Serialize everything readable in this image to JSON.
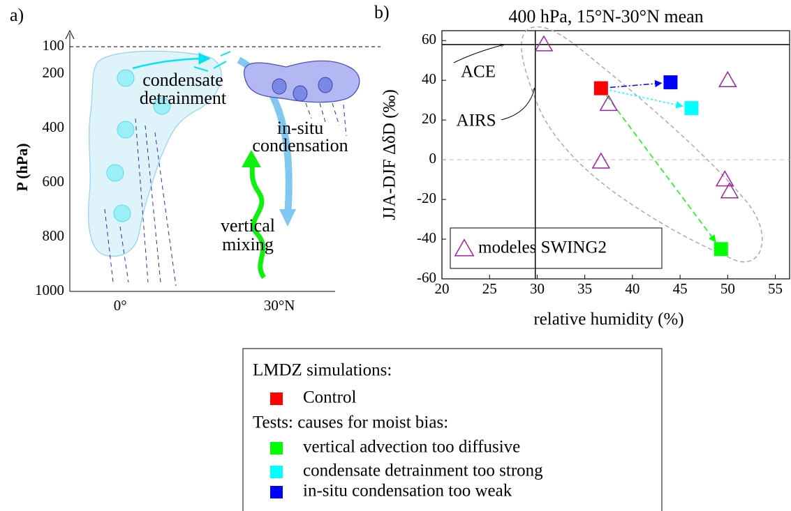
{
  "chart_data": [
    {
      "type": "schematic",
      "panel_label": "a)",
      "ylabel": "P (hPa)",
      "ylim": [
        100,
        1000
      ],
      "y_inverted": true,
      "yticks": [
        100,
        200,
        400,
        600,
        800,
        1000
      ],
      "xlim": [
        -9.5,
        40.5
      ],
      "xticks": [
        {
          "value": 0,
          "label": "0°"
        },
        {
          "value": 30,
          "label": "30°N"
        }
      ],
      "annotations": [
        "condensate",
        "detrainment",
        "in-situ",
        "condensation",
        "vertical",
        "mixing"
      ]
    },
    {
      "type": "scatter",
      "panel_label": "b)",
      "title": "400 hPa, 15°N-30°N mean",
      "xlabel": "relative humidity (%)",
      "ylabel": "JJA-DJF ΔδD (‰)",
      "xlim": [
        20,
        56.5
      ],
      "xticks": [
        20,
        25,
        30,
        35,
        40,
        45,
        50,
        55
      ],
      "ylim": [
        -60,
        65
      ],
      "yticks": [
        -60,
        -40,
        -20,
        0,
        20,
        40,
        60
      ],
      "zero_line": true,
      "reference_lines": [
        {
          "label": "ACE",
          "axis": "y",
          "value": 58
        },
        {
          "label": "AIRS",
          "axis": "x",
          "value": 29.8
        }
      ],
      "legend_titles": [
        "LMDZ simulations:",
        "Tests: causes for moist bias:"
      ],
      "series": [
        {
          "name": "modeles SWING2",
          "color": "#a020a0",
          "marker": "triangle",
          "x": [
            30.7,
            37.5,
            36.7,
            50,
            49.7,
            50.2
          ],
          "values": [
            58,
            28,
            -1,
            40,
            -10,
            -16
          ]
        },
        {
          "name": "Control",
          "color": "#ff0000",
          "marker": "square",
          "x": [
            36.7
          ],
          "values": [
            36
          ]
        },
        {
          "name": "vertical advection too diffusive",
          "color": "#00ff00",
          "marker": "square",
          "line_style": "dashed",
          "x": [
            49.3
          ],
          "values": [
            -45
          ]
        },
        {
          "name": "condensate detrainment too strong",
          "color": "#00ffff",
          "marker": "square",
          "line_style": "dotted",
          "x": [
            46.2
          ],
          "values": [
            26
          ]
        },
        {
          "name": "in-situ condensation too weak",
          "color": "#0000ff",
          "marker": "square",
          "line_style": "dashdot",
          "x": [
            44
          ],
          "values": [
            39
          ]
        }
      ]
    }
  ]
}
